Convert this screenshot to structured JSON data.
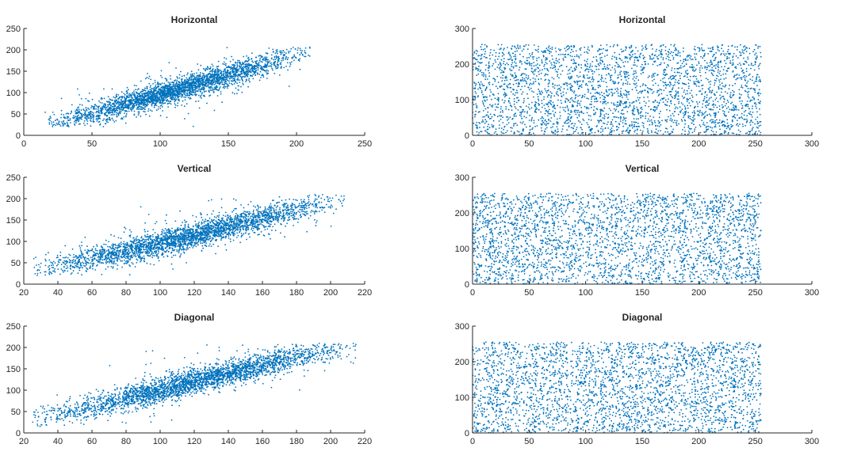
{
  "figure": {
    "marker_color": "#0072BD",
    "axis_color": "#262626"
  },
  "chart_data": [
    {
      "type": "scatter",
      "title": "Horizontal",
      "xlabel": "",
      "ylabel": "",
      "xlim": [
        0,
        250
      ],
      "ylim": [
        0,
        250
      ],
      "xticks": [
        "0",
        "50",
        "100",
        "150",
        "200",
        "250"
      ],
      "yticks": [
        "0",
        "50",
        "100",
        "150",
        "200",
        "250"
      ],
      "grid": false,
      "distribution": "correlated",
      "points_approx": 3000,
      "data_x_range": [
        15,
        210
      ],
      "data_y_range": [
        20,
        210
      ],
      "trend_y": [
        [
          20,
          25
        ],
        [
          50,
          50
        ],
        [
          100,
          95
        ],
        [
          150,
          140
        ],
        [
          200,
          190
        ],
        [
          210,
          200
        ]
      ]
    },
    {
      "type": "scatter",
      "title": "Horizontal",
      "xlabel": "",
      "ylabel": "",
      "xlim": [
        0,
        300
      ],
      "ylim": [
        0,
        300
      ],
      "xticks": [
        "0",
        "50",
        "100",
        "150",
        "200",
        "250",
        "300"
      ],
      "yticks": [
        "0",
        "100",
        "200",
        "300"
      ],
      "grid": false,
      "distribution": "uniform",
      "points_approx": 3000,
      "data_x_range": [
        0,
        255
      ],
      "data_y_range": [
        0,
        255
      ]
    },
    {
      "type": "scatter",
      "title": "Vertical",
      "xlabel": "",
      "ylabel": "",
      "xlim": [
        20,
        220
      ],
      "ylim": [
        0,
        250
      ],
      "xticks": [
        "20",
        "40",
        "60",
        "80",
        "100",
        "120",
        "140",
        "160",
        "180",
        "200",
        "220"
      ],
      "yticks": [
        "0",
        "50",
        "100",
        "150",
        "200",
        "250"
      ],
      "grid": false,
      "distribution": "correlated",
      "points_approx": 3000,
      "data_x_range": [
        25,
        208
      ],
      "data_y_range": [
        20,
        210
      ],
      "trend_y": [
        [
          25,
          30
        ],
        [
          60,
          60
        ],
        [
          100,
          95
        ],
        [
          140,
          135
        ],
        [
          180,
          175
        ],
        [
          208,
          205
        ]
      ]
    },
    {
      "type": "scatter",
      "title": "Vertical",
      "xlabel": "",
      "ylabel": "",
      "xlim": [
        0,
        300
      ],
      "ylim": [
        0,
        300
      ],
      "xticks": [
        "0",
        "50",
        "100",
        "150",
        "200",
        "250",
        "300"
      ],
      "yticks": [
        "0",
        "100",
        "200",
        "300"
      ],
      "grid": false,
      "distribution": "uniform",
      "points_approx": 3000,
      "data_x_range": [
        0,
        255
      ],
      "data_y_range": [
        0,
        255
      ]
    },
    {
      "type": "scatter",
      "title": "Diagonal",
      "xlabel": "",
      "ylabel": "",
      "xlim": [
        20,
        220
      ],
      "ylim": [
        0,
        250
      ],
      "xticks": [
        "20",
        "40",
        "60",
        "80",
        "100",
        "120",
        "140",
        "160",
        "180",
        "200",
        "220"
      ],
      "yticks": [
        "0",
        "50",
        "100",
        "150",
        "200",
        "250"
      ],
      "grid": false,
      "distribution": "correlated",
      "points_approx": 3000,
      "data_x_range": [
        25,
        215
      ],
      "data_y_range": [
        15,
        210
      ],
      "trend_y": [
        [
          25,
          30
        ],
        [
          60,
          60
        ],
        [
          100,
          100
        ],
        [
          140,
          140
        ],
        [
          180,
          178
        ],
        [
          210,
          200
        ]
      ]
    },
    {
      "type": "scatter",
      "title": "Diagonal",
      "xlabel": "",
      "ylabel": "",
      "xlim": [
        0,
        300
      ],
      "ylim": [
        0,
        300
      ],
      "xticks": [
        "0",
        "50",
        "100",
        "150",
        "200",
        "250",
        "300"
      ],
      "yticks": [
        "0",
        "100",
        "200",
        "300"
      ],
      "grid": false,
      "distribution": "uniform",
      "points_approx": 3000,
      "data_x_range": [
        0,
        255
      ],
      "data_y_range": [
        0,
        255
      ]
    }
  ]
}
